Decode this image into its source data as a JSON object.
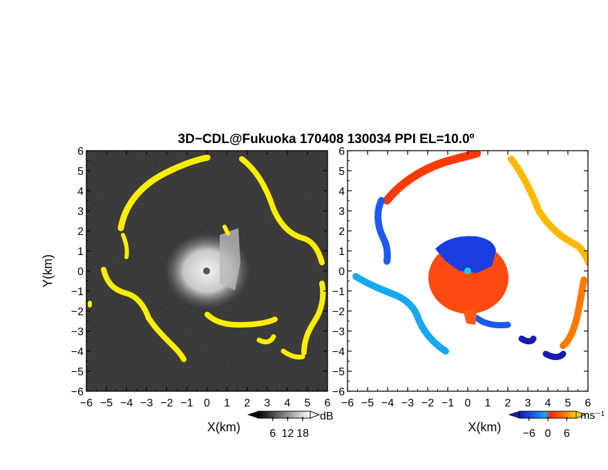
{
  "title": "3D−CDL@Fukuoka 170408 130034 PPI EL=10.0º",
  "chart_data": [
    {
      "type": "heatmap",
      "panel": "left",
      "quantity": "signal-to-noise ratio with yellow echo outline",
      "xlabel": "X(km)",
      "ylabel": "Y(km)",
      "xlim": [
        -6,
        6
      ],
      "ylim": [
        -6,
        6
      ],
      "x_ticks": [
        "−6",
        "−5",
        "−4",
        "−3",
        "−2",
        "−1",
        "0",
        "1",
        "2",
        "3",
        "4",
        "5",
        "6"
      ],
      "y_ticks": [
        "6",
        "5",
        "4",
        "3",
        "2",
        "1",
        "0",
        "−1",
        "−2",
        "−3",
        "−4",
        "−5",
        "−6"
      ],
      "colorbar": {
        "unit": "dB",
        "ticks": [
          "6",
          "12",
          "18"
        ],
        "tick_values": [
          6,
          12,
          18
        ],
        "range": [
          0,
          21
        ],
        "colors": [
          "#000000",
          "#ffffff"
        ]
      },
      "highlight_color": "#ffee00",
      "radar_position": [
        0,
        0
      ]
    },
    {
      "type": "heatmap",
      "panel": "right",
      "quantity": "Doppler velocity",
      "xlabel": "X(km)",
      "xlim": [
        -6,
        6
      ],
      "ylim": [
        -6,
        6
      ],
      "x_ticks": [
        "−6",
        "−5",
        "−4",
        "−3",
        "−2",
        "−1",
        "0",
        "1",
        "2",
        "3",
        "4",
        "5",
        "6"
      ],
      "y_ticks": [
        "6",
        "5",
        "4",
        "3",
        "2",
        "1",
        "0",
        "−1",
        "−2",
        "−3",
        "−4",
        "−5",
        "−6"
      ],
      "colorbar": {
        "unit": "ms⁻¹",
        "ticks": [
          "−6",
          "0",
          "6"
        ],
        "tick_values": [
          -6,
          0,
          6
        ],
        "range": [
          -9,
          9
        ],
        "colors": [
          "#1a1ab4",
          "#1e5af0",
          "#18a8f0",
          "#ff2a00",
          "#ff7a00",
          "#ffd200"
        ]
      },
      "radar_position": [
        0,
        0
      ]
    }
  ]
}
